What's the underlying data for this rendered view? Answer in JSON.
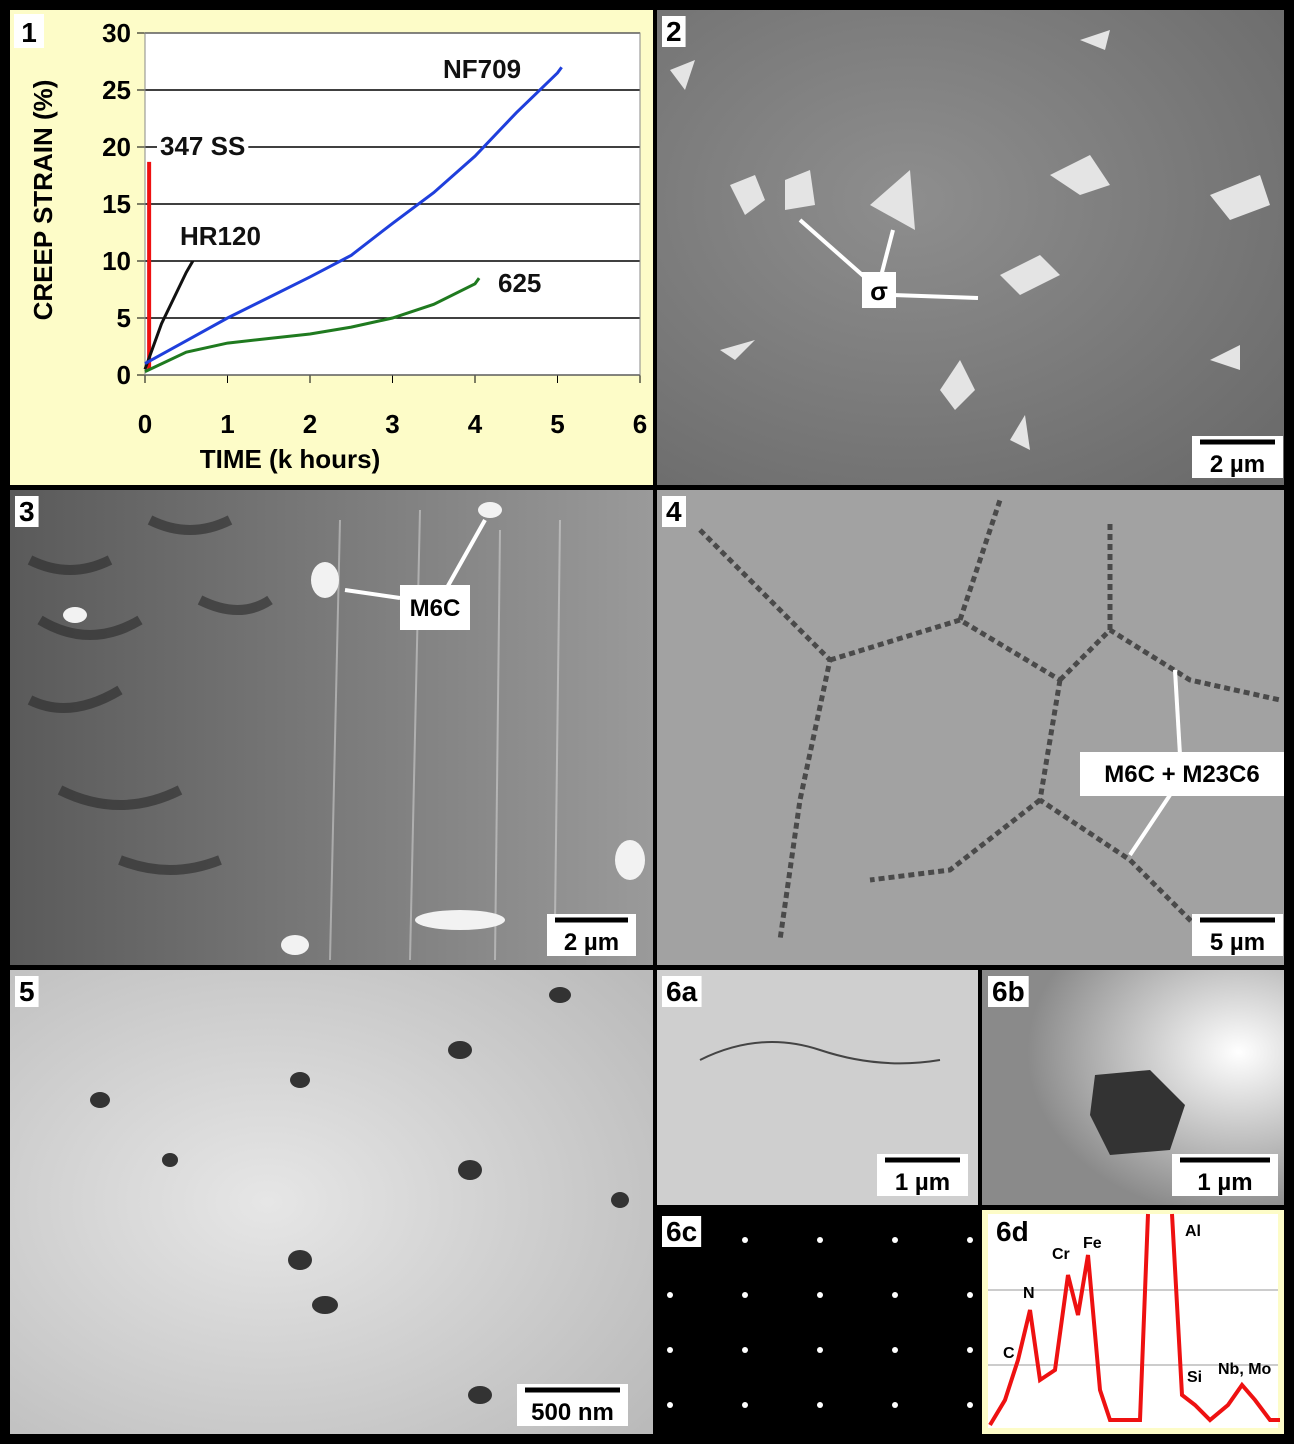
{
  "chart_data": {
    "type": "line",
    "panel": "1",
    "xlabel": "TIME (k hours)",
    "ylabel": "CREEP STRAIN (%)",
    "xlim": [
      0,
      6
    ],
    "xticks": [
      0,
      1,
      2,
      3,
      4,
      5,
      6
    ],
    "ylim": [
      0,
      30
    ],
    "yticks": [
      0,
      5,
      10,
      15,
      20,
      25,
      30
    ],
    "grid": true,
    "series": [
      {
        "name": "347 SS",
        "color": "#ee1111",
        "x": [
          0.05,
          0.05
        ],
        "values": [
          0.5,
          18.7
        ]
      },
      {
        "name": "HR120",
        "color": "#111111",
        "x": [
          0,
          0.1,
          0.2,
          0.3,
          0.4,
          0.5,
          0.58
        ],
        "values": [
          0.5,
          2.5,
          4.5,
          6,
          7.5,
          9,
          10
        ]
      },
      {
        "name": "NF709",
        "color": "#1f3fdc",
        "x": [
          0,
          0.5,
          1,
          1.5,
          2,
          2.5,
          3,
          3.5,
          4,
          4.5,
          5,
          5.05
        ],
        "values": [
          1,
          3,
          5,
          6.8,
          8.6,
          10.5,
          13.3,
          16,
          19.2,
          23,
          26.5,
          27
        ]
      },
      {
        "name": "625",
        "color": "#1f7a1f",
        "x": [
          0,
          0.5,
          1,
          1.5,
          2,
          2.5,
          3,
          3.5,
          4,
          4.05
        ],
        "values": [
          0.3,
          2,
          2.8,
          3.2,
          3.6,
          4.2,
          5,
          6.2,
          8,
          8.5
        ]
      }
    ]
  },
  "panels": {
    "p2": {
      "label": "2",
      "scale": "2 µm",
      "annotation": "σ"
    },
    "p3": {
      "label": "3",
      "scale": "2 µm",
      "annotation": "M6C"
    },
    "p4": {
      "label": "4",
      "scale": "5 µm",
      "annotation": "M6C + M23C6"
    },
    "p5": {
      "label": "5",
      "scale": "500 nm"
    },
    "p6a": {
      "label": "6a",
      "scale": "1 µm"
    },
    "p6b": {
      "label": "6b",
      "scale": "1 µm"
    },
    "p6c": {
      "label": "6c"
    },
    "p6d": {
      "label": "6d",
      "peaks": [
        "C",
        "N",
        "Cr",
        "Fe",
        "Al",
        "Si",
        "Nb, Mo"
      ]
    }
  }
}
